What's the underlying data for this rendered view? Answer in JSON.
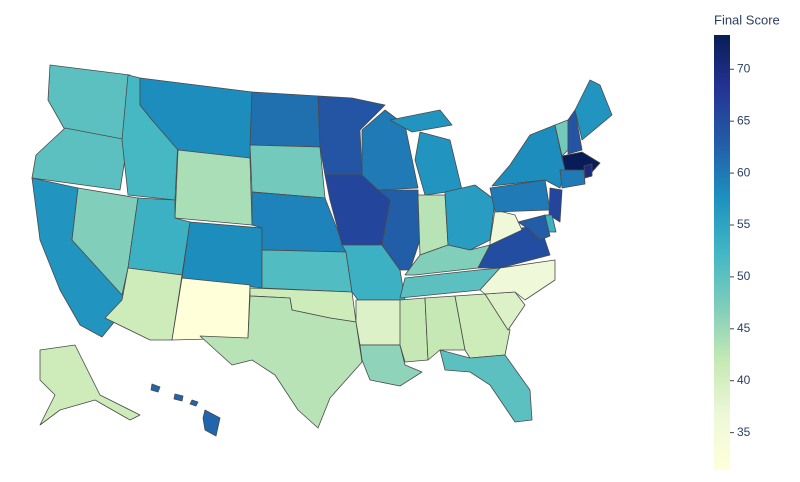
{
  "chart_data": {
    "type": "choropleth",
    "title": "Final Score",
    "values": [
      50,
      50,
      57,
      47,
      52,
      58,
      44,
      53,
      41,
      58,
      31.4,
      61,
      48,
      59,
      51,
      41,
      43,
      64,
      66,
      53,
      39,
      46,
      60,
      63,
      57,
      43,
      56,
      47,
      50,
      42,
      42,
      41,
      50,
      39,
      36,
      65,
      36,
      60,
      58,
      48,
      64,
      57,
      73.3,
      70,
      60,
      66,
      53,
      63,
      41,
      62
    ],
    "zlim": [
      31.4,
      73.3
    ],
    "zticks": [
      35,
      40,
      45,
      50,
      55,
      60,
      65,
      70
    ],
    "colorscale": [
      [
        0,
        "#ffffd9"
      ],
      [
        0.125,
        "#edf8d9"
      ],
      [
        0.25,
        "#c7e9b4"
      ],
      [
        0.375,
        "#7fcdbb"
      ],
      [
        0.5,
        "#41b6c4"
      ],
      [
        0.625,
        "#1d91c0"
      ],
      [
        0.75,
        "#225ea8"
      ],
      [
        0.875,
        "#253494"
      ],
      [
        1,
        "#081d58"
      ]
    ]
  }
}
